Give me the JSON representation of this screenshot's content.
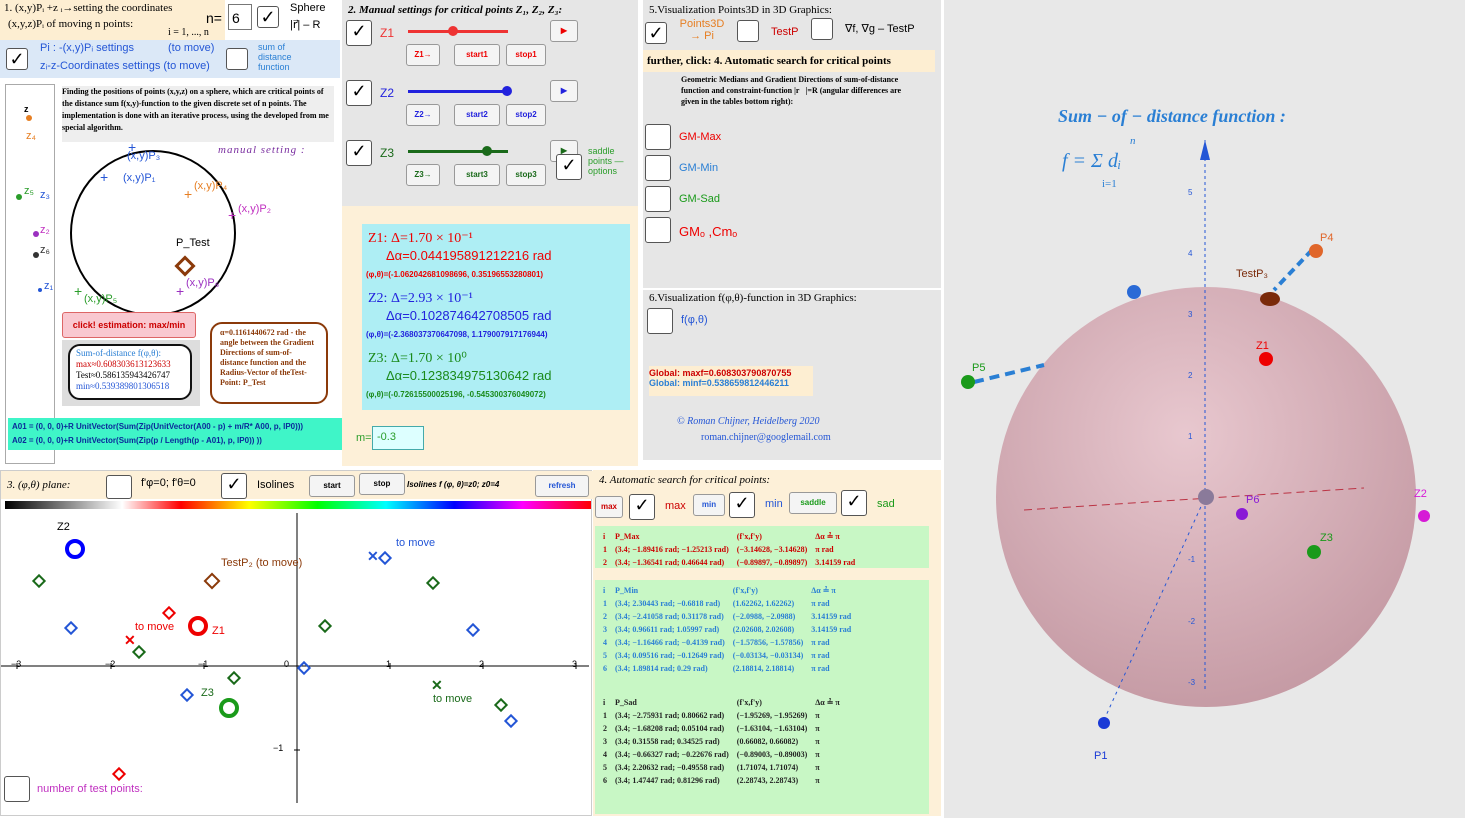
{
  "panel1": {
    "title": "1. (x,y)Pᵢ +z ᵢ→setting the coordinates",
    "subtitle": "(x,y,z)Pᵢ of moving n points:",
    "range": "i = 1, ..., n",
    "n_label": "n=",
    "n_value": "6",
    "sphere": "Sphere",
    "radius": "|r⃗| – R",
    "pi_settings": "Pi : -(x,y)Pᵢ settings",
    "to_move": "(to move)",
    "z_settings": "zᵢ-z-Coordinates settings (to move)",
    "sum_label": "sum of distance function",
    "description": "Finding the positions of points (x,y,z) on a sphere, which are critical points of the distance sum f(x,y)-function to the given discrete set of n points. The implementation is done with an iterative process, using the developed from me special algorithm.",
    "manual": "manual setting :",
    "slider_labels": [
      "z",
      "z₄",
      "z₅",
      "z₃",
      "z₂",
      "z₆",
      "z₁"
    ],
    "point_labels": [
      "(x,y)P₃",
      "(x,y)P₁",
      "(x,y)P₄",
      "(x,y)P₂",
      "P_Test",
      "(x,y)P₆",
      "(x,y)P₅"
    ],
    "estimation": "click! estimation: max/min",
    "sum_box": {
      "title": "Sum-of-distance f(φ,θ):",
      "max": "max≈0.608303613123633",
      "test": "Test≈0.586135943426747",
      "min": "min≈0.539389801306518"
    },
    "alpha_box": "α=0.1161440672 rad - the angle between the Gradient Directions of sum-of-distance function and the Radius-Vector of theTest-Point: P_Test",
    "formula1": "A01 = (0, 0, 0)+R UnitVector(Sum(Zip(UnitVector(A00 - p) + m/R* A00, p, lP0)))",
    "formula2": "A02 = (0, 0, 0)+R UnitVector(Sum(Zip(p / Length(p - A01), p, lP0)) ))"
  },
  "panel2": {
    "title": "2. Manual settings for critical points Z₁, Z₂, Z₃:",
    "rows": [
      {
        "name": "Z1",
        "go": "Z1→",
        "start": "start1",
        "stop": "stop1"
      },
      {
        "name": "Z2",
        "go": "Z2→",
        "start": "start2",
        "stop": "stop2"
      },
      {
        "name": "Z3",
        "go": "Z3→",
        "start": "start3",
        "stop": "stop3"
      }
    ],
    "saddle": "saddle points —options"
  },
  "results": {
    "items": [
      {
        "delta": "Z1: Δ=1.70 × 10⁻¹",
        "alpha": "Δα=0.044195891212216 rad",
        "coords": "(φ,θ)=(-1.062042681098696, 0.35196553280801)"
      },
      {
        "delta": "Z2: Δ=2.93 × 10⁻¹",
        "alpha": "Δα=0.102874642708505 rad",
        "coords": "(φ,θ)=(-2.368037370647098, 1.179007917176944)"
      },
      {
        "delta": "Z3: Δ=1.70 × 10⁰",
        "alpha": "Δα=0.123834975130642 rad",
        "coords": "(φ,θ)=(-0.72615500025196, -0.545300376049072)"
      }
    ],
    "m_label": "m=",
    "m_value": "-0.3"
  },
  "panel5": {
    "title": "5.Visualization Points3D in 3D Graphics:",
    "points3d": "Points3D → Pi",
    "testp": "TestP",
    "grad": "∇f, ∇g – TestP",
    "further": "further, click: 4. Automatic search for critical points",
    "info": "Geometric Medians and Gradient Directions of sum-of-distance function and constraint-function |r⃗|=R (angular differences are given in the tables bottom right):",
    "options": [
      "GM-Max",
      "GM-Min",
      "GM-Sad",
      "GMₒ ,Cmₒ"
    ]
  },
  "panel6": {
    "title": "6.Visualization f(φ,θ)-function in 3D Graphics:",
    "f": "f(φ,θ)",
    "gmax": "Global: maxf=0.608303790870755",
    "gmin": "Global: minf=0.538659812446211",
    "copyright": "©  Roman Chijner, Heidelberg 2020",
    "email": "roman.chijner@googlemail.com"
  },
  "panel3": {
    "title": "3. (φ,θ) plane:",
    "deriv": "f'φ=0; f'θ=0",
    "isolines": "Isolines",
    "start": "start",
    "stop": "stop",
    "iso_text": "Isolines f (φ, θ)=z0; z0=4",
    "refresh": "refresh",
    "labels": [
      "Z2",
      "TestP₂ (to move)",
      "to move",
      "Z1",
      "Z3",
      "to move",
      "to move"
    ],
    "xticks": [
      "−3",
      "−2",
      "−1",
      "0",
      "1",
      "2",
      "3"
    ],
    "yticks": [
      "−1"
    ],
    "test_points": "number of test points:"
  },
  "panel4": {
    "title": "4. Automatic search for critical points:",
    "buttons": [
      "max",
      "max",
      "min",
      "min",
      "saddle",
      "sad"
    ],
    "tables": [
      {
        "header": [
          "i",
          "P_Max",
          "(f'x,f'y)",
          "Δα ≟ π"
        ],
        "rows": [
          [
            "1",
            "(3.4; −1.89416 rad; −1.25213 rad)",
            "(−3.14628, −3.14628)",
            "π rad"
          ],
          [
            "2",
            "(3.4; −1.36541 rad; 0.46644 rad)",
            "(−0.89897, −0.89897)",
            "3.14159 rad"
          ]
        ]
      },
      {
        "header": [
          "i",
          "P_Min",
          "(f'x,f'y)",
          "Δα ≟ π"
        ],
        "rows": [
          [
            "1",
            "(3.4; 2.30443 rad; −0.6818 rad)",
            "(1.62262, 1.62262)",
            "π rad"
          ],
          [
            "2",
            "(3.4; −2.41058 rad; 0.31178 rad)",
            "(−2.0988, −2.0988)",
            "3.14159 rad"
          ],
          [
            "3",
            "(3.4; 0.96611 rad; 1.05997 rad)",
            "(2.02608, 2.02608)",
            "3.14159 rad"
          ],
          [
            "4",
            "(3.4; −1.16466 rad; −0.4139 rad)",
            "(−1.57856, −1.57856)",
            "π rad"
          ],
          [
            "5",
            "(3.4; 0.09516 rad; −0.12649 rad)",
            "(−0.03134, −0.03134)",
            "π rad"
          ],
          [
            "6",
            "(3.4; 1.89814 rad; 0.29 rad)",
            "(2.18814, 2.18814)",
            "π rad"
          ]
        ]
      },
      {
        "header": [
          "i",
          "P_Sad",
          "(f'x,f'y)",
          "Δα ≟ π"
        ],
        "rows": [
          [
            "1",
            "(3.4; −2.75931 rad; 0.80662 rad)",
            "(−1.95269, −1.95269)",
            "π"
          ],
          [
            "2",
            "(3.4; −1.68208 rad; 0.05104 rad)",
            "(−1.63104, −1.63104)",
            "π"
          ],
          [
            "3",
            "(3.4; 0.31558 rad; 0.34525 rad)",
            "(0.66082, 0.66082)",
            "π"
          ],
          [
            "4",
            "(3.4; −0.66327 rad; −0.22676 rad)",
            "(−0.89003, −0.89003)",
            "π"
          ],
          [
            "5",
            "(3.4; 2.20632 rad; −0.49558 rad)",
            "(1.71074, 1.71074)",
            "π"
          ],
          [
            "6",
            "(3.4; 1.47447 rad; 0.81296 rad)",
            "(2.28743, 2.28743)",
            "π"
          ]
        ]
      }
    ]
  },
  "view3d": {
    "title": "Sum − of − distance function :",
    "formula": "f = Σ dᵢ",
    "sum_top": "n",
    "sum_bottom": "i=1",
    "labels": [
      "P4",
      "TestP₃",
      "Z1",
      "P5",
      "P1",
      "P6",
      "Z2",
      "Z3"
    ],
    "zticks": [
      "5",
      "4",
      "3",
      "2",
      "1",
      "-1",
      "-2",
      "-3"
    ]
  }
}
